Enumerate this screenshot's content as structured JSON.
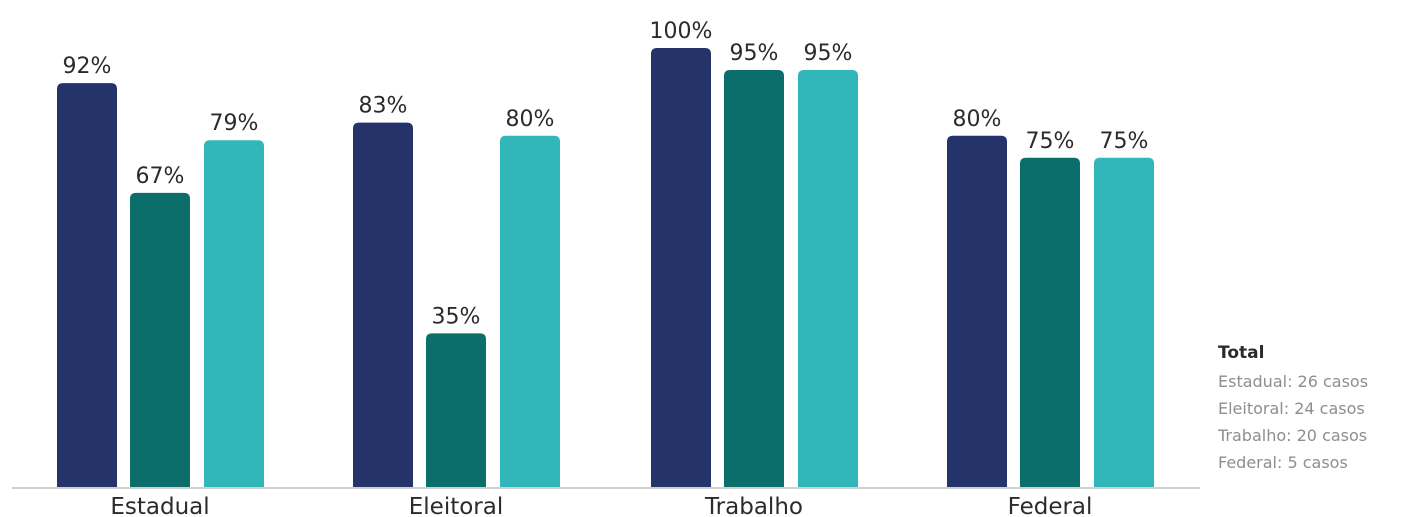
{
  "chart_data": {
    "type": "bar",
    "categories": [
      "Estadual",
      "Eleitoral",
      "Trabalho",
      "Federal"
    ],
    "series": [
      {
        "values": [
          92,
          83,
          100,
          80
        ],
        "labels": [
          "92%",
          "83%",
          "100%",
          "80%"
        ]
      },
      {
        "values": [
          67,
          35,
          95,
          75
        ],
        "labels": [
          "67%",
          "35%",
          "95%",
          "75%"
        ]
      },
      {
        "values": [
          79,
          80,
          95,
          75
        ],
        "labels": [
          "79%",
          "80%",
          "95%",
          "75%"
        ]
      }
    ],
    "colors": [
      "#25336b",
      "#0b6e6b",
      "#31b6b9"
    ],
    "axis_color": "#cfcfcf",
    "ylim": [
      0,
      100
    ],
    "grid": false,
    "title": "",
    "xlabel": "",
    "ylabel": ""
  },
  "totals": {
    "title": "Total",
    "items": [
      "Estadual: 26 casos",
      "Eleitoral: 24 casos",
      "Trabalho: 20 casos",
      "Federal: 5 casos"
    ]
  }
}
